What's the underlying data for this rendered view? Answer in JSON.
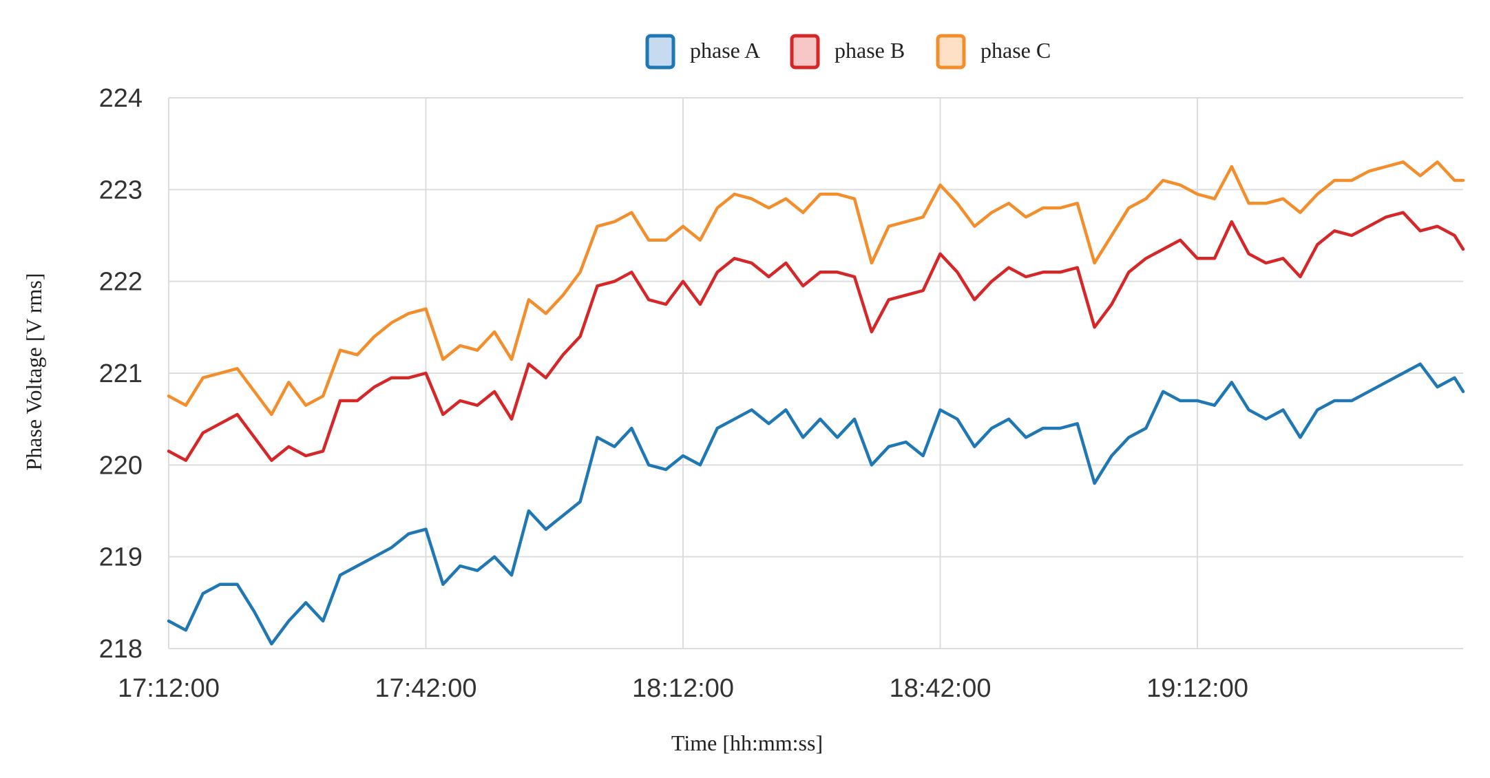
{
  "chart_data": {
    "type": "line",
    "xlabel": "Time [hh:mm:ss]",
    "ylabel": "Phase Voltage [V rms]",
    "ylim": [
      218,
      224
    ],
    "xlim": [
      "17:12:00",
      "19:43:00"
    ],
    "x_ticks": [
      "17:12:00",
      "17:42:00",
      "18:12:00",
      "18:42:00",
      "19:12:00"
    ],
    "y_ticks": [
      218,
      219,
      220,
      221,
      222,
      223,
      224
    ],
    "grid": true,
    "legend_position": "top-center",
    "x": [
      "17:12:00",
      "17:14:00",
      "17:16:00",
      "17:18:00",
      "17:20:00",
      "17:22:00",
      "17:24:00",
      "17:26:00",
      "17:28:00",
      "17:30:00",
      "17:32:00",
      "17:34:00",
      "17:36:00",
      "17:38:00",
      "17:40:00",
      "17:42:00",
      "17:44:00",
      "17:46:00",
      "17:48:00",
      "17:50:00",
      "17:52:00",
      "17:54:00",
      "17:56:00",
      "17:58:00",
      "18:00:00",
      "18:02:00",
      "18:04:00",
      "18:06:00",
      "18:08:00",
      "18:10:00",
      "18:12:00",
      "18:14:00",
      "18:16:00",
      "18:18:00",
      "18:20:00",
      "18:22:00",
      "18:24:00",
      "18:26:00",
      "18:28:00",
      "18:30:00",
      "18:32:00",
      "18:34:00",
      "18:36:00",
      "18:38:00",
      "18:40:00",
      "18:42:00",
      "18:44:00",
      "18:46:00",
      "18:48:00",
      "18:50:00",
      "18:52:00",
      "18:54:00",
      "18:56:00",
      "18:58:00",
      "19:00:00",
      "19:02:00",
      "19:04:00",
      "19:06:00",
      "19:08:00",
      "19:10:00",
      "19:12:00",
      "19:14:00",
      "19:16:00",
      "19:18:00",
      "19:20:00",
      "19:22:00",
      "19:24:00",
      "19:26:00",
      "19:28:00",
      "19:30:00",
      "19:32:00",
      "19:34:00",
      "19:36:00",
      "19:38:00",
      "19:40:00",
      "19:42:00",
      "19:43:00"
    ],
    "series": [
      {
        "name": "phase A",
        "color": "#1f77b4",
        "fill": "#c6dbef",
        "values": [
          218.3,
          218.2,
          218.6,
          218.7,
          218.7,
          218.4,
          218.05,
          218.3,
          218.5,
          218.3,
          218.8,
          218.9,
          219.0,
          219.1,
          219.25,
          219.3,
          218.7,
          218.9,
          218.85,
          219.0,
          218.8,
          219.5,
          219.3,
          219.45,
          219.6,
          220.3,
          220.2,
          220.4,
          220.0,
          219.95,
          220.1,
          220.0,
          220.4,
          220.5,
          220.6,
          220.45,
          220.6,
          220.3,
          220.5,
          220.3,
          220.5,
          220.0,
          220.2,
          220.25,
          220.1,
          220.6,
          220.5,
          220.2,
          220.4,
          220.5,
          220.3,
          220.4,
          220.4,
          220.45,
          219.8,
          220.1,
          220.3,
          220.4,
          220.8,
          220.7,
          220.7,
          220.65,
          220.9,
          220.6,
          220.5,
          220.6,
          220.3,
          220.6,
          220.7,
          220.7,
          220.8,
          220.9,
          221.0,
          221.1,
          220.85,
          220.95,
          220.8
        ]
      },
      {
        "name": "phase B",
        "color": "#d62728",
        "fill": "#f7c6c7",
        "values": [
          220.15,
          220.05,
          220.35,
          220.45,
          220.55,
          220.3,
          220.05,
          220.2,
          220.1,
          220.15,
          220.7,
          220.7,
          220.85,
          220.95,
          220.95,
          221.0,
          220.55,
          220.7,
          220.65,
          220.8,
          220.5,
          221.1,
          220.95,
          221.2,
          221.4,
          221.95,
          222.0,
          222.1,
          221.8,
          221.75,
          222.0,
          221.75,
          222.1,
          222.25,
          222.2,
          222.05,
          222.2,
          221.95,
          222.1,
          222.1,
          222.05,
          221.45,
          221.8,
          221.85,
          221.9,
          222.3,
          222.1,
          221.8,
          222.0,
          222.15,
          222.05,
          222.1,
          222.1,
          222.15,
          221.5,
          221.75,
          222.1,
          222.25,
          222.35,
          222.45,
          222.25,
          222.25,
          222.65,
          222.3,
          222.2,
          222.25,
          222.05,
          222.4,
          222.55,
          222.5,
          222.6,
          222.7,
          222.75,
          222.55,
          222.6,
          222.5,
          222.35
        ]
      },
      {
        "name": "phase C",
        "color": "#f28e2b",
        "fill": "#fde0c5",
        "values": [
          220.75,
          220.65,
          220.95,
          221.0,
          221.05,
          220.8,
          220.55,
          220.9,
          220.65,
          220.75,
          221.25,
          221.2,
          221.4,
          221.55,
          221.65,
          221.7,
          221.15,
          221.3,
          221.25,
          221.45,
          221.15,
          221.8,
          221.65,
          221.85,
          222.1,
          222.6,
          222.65,
          222.75,
          222.45,
          222.45,
          222.6,
          222.45,
          222.8,
          222.95,
          222.9,
          222.8,
          222.9,
          222.75,
          222.95,
          222.95,
          222.9,
          222.2,
          222.6,
          222.65,
          222.7,
          223.05,
          222.85,
          222.6,
          222.75,
          222.85,
          222.7,
          222.8,
          222.8,
          222.85,
          222.2,
          222.5,
          222.8,
          222.9,
          223.1,
          223.05,
          222.95,
          222.9,
          223.25,
          222.85,
          222.85,
          222.9,
          222.75,
          222.95,
          223.1,
          223.1,
          223.2,
          223.25,
          223.3,
          223.15,
          223.3,
          223.1,
          223.1
        ]
      }
    ]
  }
}
